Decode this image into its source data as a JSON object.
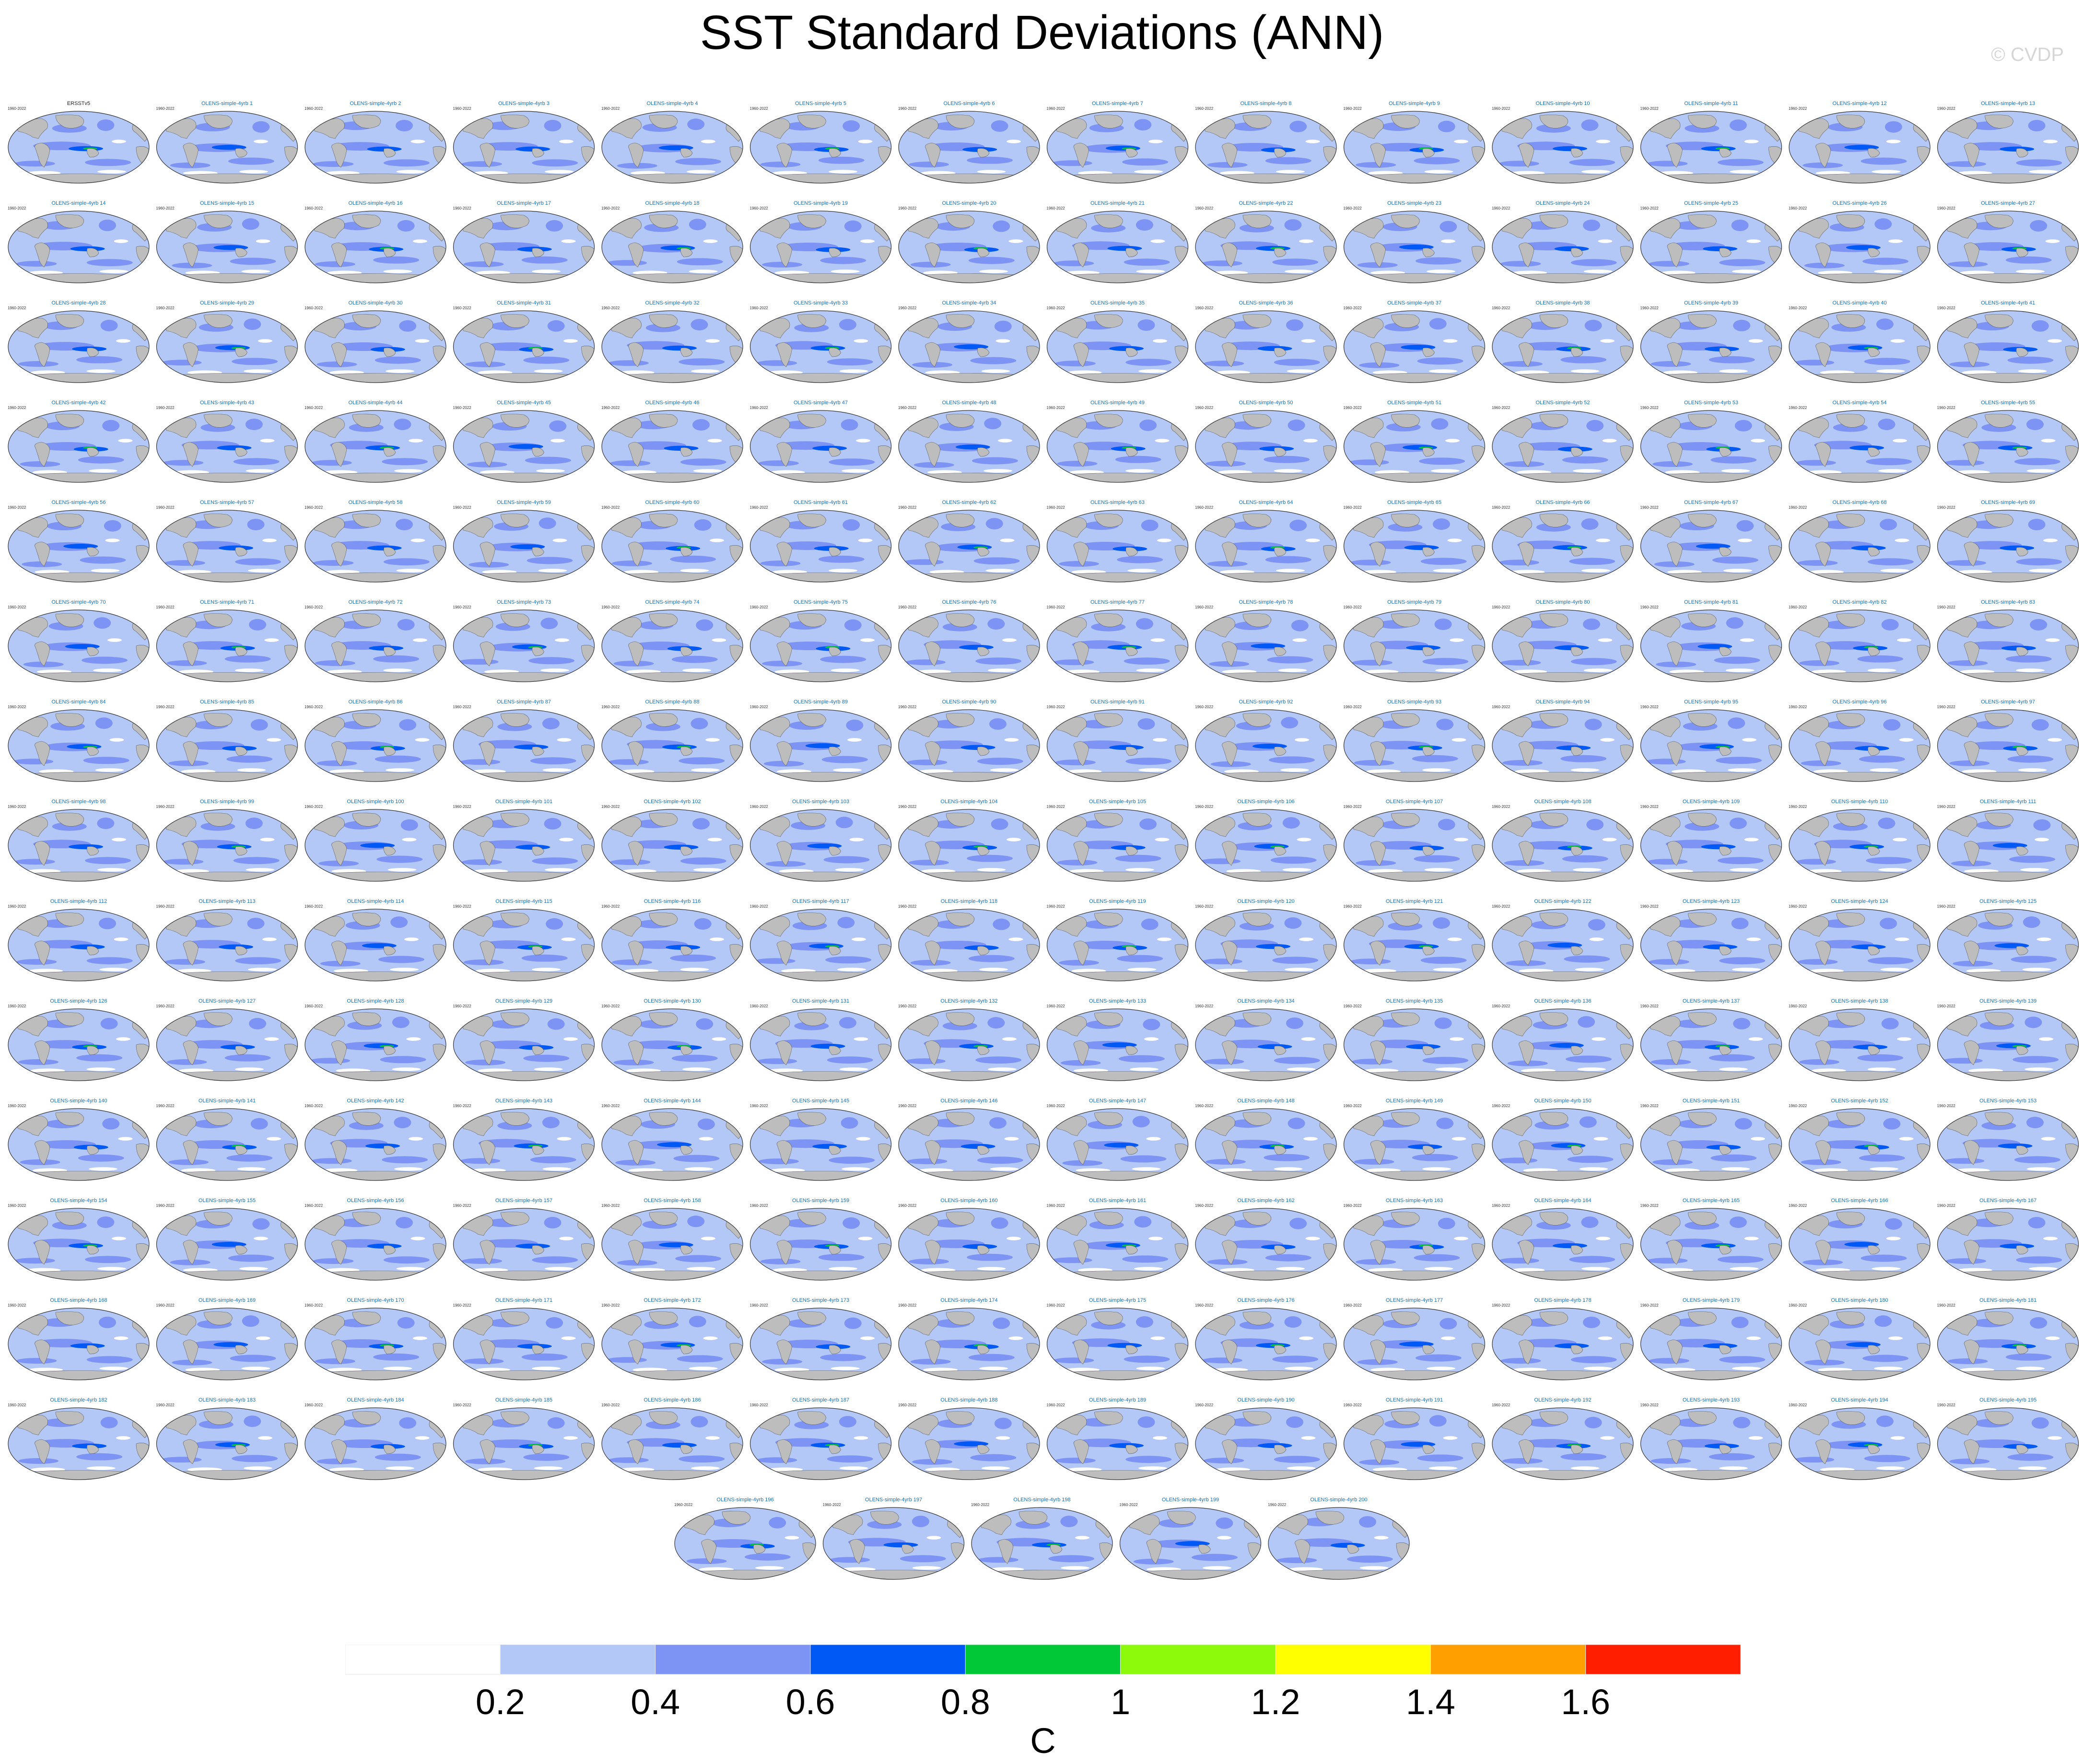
{
  "figure": {
    "title": "SST Standard Deviations (ANN)",
    "watermark": "© CVDP"
  },
  "panel_common": {
    "period_label": "1960-2022",
    "observations_label": "ERSSTv5",
    "member_prefix": "OLENS-simple-4yrb"
  },
  "panels": {
    "first_panel": "ERSSTv5",
    "members": "OLENS-simple-4yrb 1 to OLENS-simple-4yrb 200",
    "grid_columns": 14,
    "last_row_count": 5
  },
  "chart_data": {
    "type": "heatmap",
    "title": "SST Standard Deviations (ANN)",
    "units": "C",
    "colorbar": {
      "ticks": [
        "0.2",
        "0.4",
        "0.6",
        "0.8",
        "1",
        "1.2",
        "1.4",
        "1.6"
      ],
      "levels": [
        0.2,
        0.4,
        0.6,
        0.8,
        1.0,
        1.2,
        1.4,
        1.6
      ],
      "colors": [
        "#ffffff",
        "#b4c8f8",
        "#7d94f4",
        "#0059f5",
        "#00c837",
        "#8cfa0a",
        "#ffff00",
        "#ffa000",
        "#ff1e00"
      ]
    },
    "colors": {
      "land": "#bdbdbd",
      "ocean_background": "#b4c8f8",
      "panel_title": "#1a6fb5"
    }
  }
}
